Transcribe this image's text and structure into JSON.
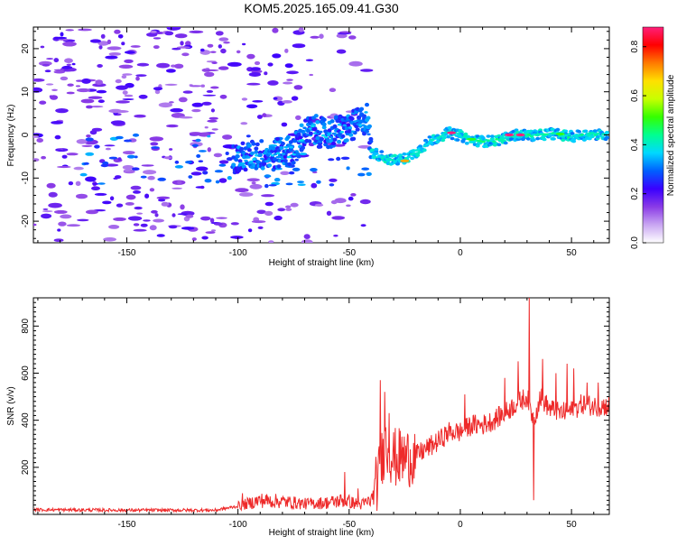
{
  "title": "KOM5.2025.165.09.41.G30",
  "colorbar": {
    "label": "Normalized spectral amplitude",
    "range": [
      0,
      0.88
    ],
    "ticks": [
      "0.0",
      "0.2",
      "0.4",
      "0.6",
      "0.8"
    ],
    "colors": [
      "#ffffff",
      "#c9a6f2",
      "#8a3be6",
      "#3a00ff",
      "#0060ff",
      "#00d8ff",
      "#00ff90",
      "#34ff00",
      "#c8ff00",
      "#ffe000",
      "#ff7a00",
      "#ff0000",
      "#ff1f7a"
    ]
  },
  "chart_data": [
    {
      "type": "heatmap",
      "xlabel": "Height of straight line (km)",
      "ylabel": "Frequency (Hz)",
      "xlim": [
        -192,
        67
      ],
      "ylim": [
        -25,
        25
      ],
      "xticks": [
        "-150",
        "-100",
        "-50",
        "0",
        "50"
      ],
      "yticks": [
        "-20",
        "-10",
        "0",
        "10",
        "20"
      ],
      "ridge": [
        {
          "x": -100,
          "f": -5.5
        },
        {
          "x": -95,
          "f": -5
        },
        {
          "x": -90,
          "f": -4.5
        },
        {
          "x": -85,
          "f": -5
        },
        {
          "x": -80,
          "f": -4
        },
        {
          "x": -75,
          "f": -3.5
        },
        {
          "x": -70,
          "f": 0.5
        },
        {
          "x": -65,
          "f": 1
        },
        {
          "x": -60,
          "f": 0
        },
        {
          "x": -55,
          "f": 1
        },
        {
          "x": -50,
          "f": 1.5
        },
        {
          "x": -45,
          "f": 3
        },
        {
          "x": -42,
          "f": 4
        },
        {
          "x": -40,
          "f": -4
        },
        {
          "x": -35,
          "f": -5
        },
        {
          "x": -30,
          "f": -6
        },
        {
          "x": -25,
          "f": -5.5
        },
        {
          "x": -20,
          "f": -4
        },
        {
          "x": -15,
          "f": -2
        },
        {
          "x": -10,
          "f": -0.5
        },
        {
          "x": -5,
          "f": 0.5
        },
        {
          "x": 0,
          "f": -0.2
        },
        {
          "x": 5,
          "f": -1.2
        },
        {
          "x": 10,
          "f": -1.5
        },
        {
          "x": 15,
          "f": -1.4
        },
        {
          "x": 20,
          "f": -0.8
        },
        {
          "x": 25,
          "f": 0
        },
        {
          "x": 30,
          "f": 0
        },
        {
          "x": 35,
          "f": -0.2
        },
        {
          "x": 40,
          "f": 0.4
        },
        {
          "x": 45,
          "f": 0
        },
        {
          "x": 50,
          "f": -0.4
        },
        {
          "x": 55,
          "f": 0
        },
        {
          "x": 60,
          "f": 0.2
        },
        {
          "x": 66,
          "f": -0.2
        }
      ],
      "hotspots": [
        {
          "x": -4,
          "f": 0.5,
          "amp": 0.88
        },
        {
          "x": 22,
          "f": 0,
          "amp": 0.88
        },
        {
          "x": 27,
          "f": 0,
          "amp": 0.88
        },
        {
          "x": -25,
          "f": -6,
          "amp": 0.7
        },
        {
          "x": 5,
          "f": -1,
          "amp": 0.5
        },
        {
          "x": 45,
          "f": 0.2,
          "amp": 0.5
        }
      ]
    },
    {
      "type": "line",
      "xlabel": "Height of straight line (km)",
      "ylabel": "SNR (v/v)",
      "xlim": [
        -192,
        67
      ],
      "ylim": [
        0,
        920
      ],
      "xticks": [
        "-150",
        "-100",
        "-50",
        "0",
        "50"
      ],
      "yticks": [
        "200",
        "400",
        "600",
        "800"
      ],
      "series": [
        {
          "color": "#ee2a2a",
          "baseline": [
            {
              "x": -192,
              "y": 20
            },
            {
              "x": -150,
              "y": 18
            },
            {
              "x": -110,
              "y": 18
            },
            {
              "x": -100,
              "y": 35
            },
            {
              "x": -90,
              "y": 60
            },
            {
              "x": -80,
              "y": 55
            },
            {
              "x": -70,
              "y": 45
            },
            {
              "x": -60,
              "y": 50
            },
            {
              "x": -52,
              "y": 60
            },
            {
              "x": -45,
              "y": 40
            },
            {
              "x": -40,
              "y": 60
            },
            {
              "x": -37,
              "y": 150
            },
            {
              "x": -34,
              "y": 300
            },
            {
              "x": -30,
              "y": 240
            },
            {
              "x": -25,
              "y": 240
            },
            {
              "x": -20,
              "y": 250
            },
            {
              "x": -15,
              "y": 280
            },
            {
              "x": -10,
              "y": 310
            },
            {
              "x": -5,
              "y": 350
            },
            {
              "x": 0,
              "y": 350
            },
            {
              "x": 5,
              "y": 380
            },
            {
              "x": 10,
              "y": 380
            },
            {
              "x": 15,
              "y": 400
            },
            {
              "x": 20,
              "y": 430
            },
            {
              "x": 25,
              "y": 470
            },
            {
              "x": 30,
              "y": 500
            },
            {
              "x": 33,
              "y": 400
            },
            {
              "x": 36,
              "y": 500
            },
            {
              "x": 40,
              "y": 450
            },
            {
              "x": 45,
              "y": 430
            },
            {
              "x": 50,
              "y": 440
            },
            {
              "x": 55,
              "y": 470
            },
            {
              "x": 60,
              "y": 460
            },
            {
              "x": 67,
              "y": 460
            }
          ],
          "spikes": [
            {
              "x": -98,
              "y": 90
            },
            {
              "x": -52,
              "y": 180
            },
            {
              "x": -46,
              "y": 110
            },
            {
              "x": -36,
              "y": 570
            },
            {
              "x": -34,
              "y": 520
            },
            {
              "x": -32,
              "y": 430
            },
            {
              "x": 2,
              "y": 510
            },
            {
              "x": 20,
              "y": 580
            },
            {
              "x": 26,
              "y": 650
            },
            {
              "x": 31,
              "y": 920
            },
            {
              "x": 33,
              "y": 60
            },
            {
              "x": 37,
              "y": 660
            },
            {
              "x": 43,
              "y": 600
            },
            {
              "x": 48,
              "y": 640
            },
            {
              "x": 51,
              "y": 620
            },
            {
              "x": 57,
              "y": 560
            },
            {
              "x": 62,
              "y": 560
            }
          ]
        }
      ]
    }
  ]
}
